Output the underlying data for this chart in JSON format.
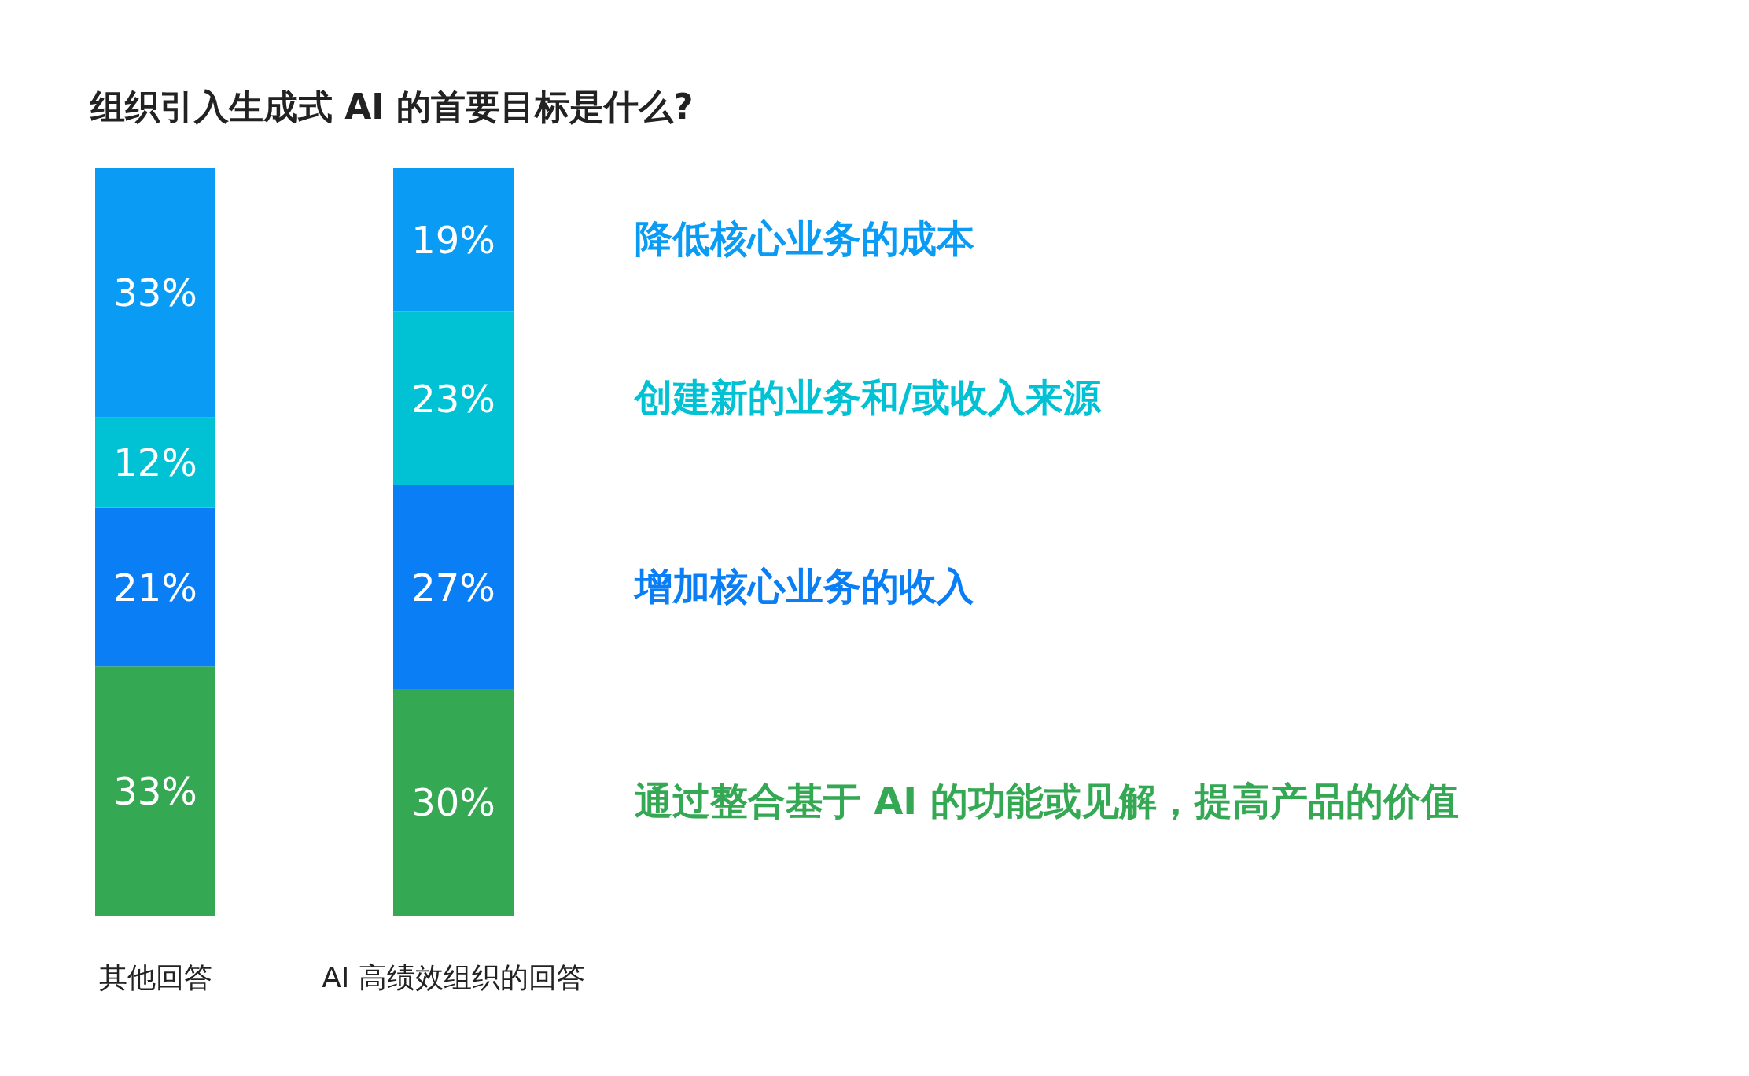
{
  "chart_data": {
    "type": "bar",
    "title": "组织引入生成式 AI 的首要目标是什么?",
    "categories": [
      "其他回答",
      "AI 高绩效组织的回答"
    ],
    "stacked": true,
    "series": [
      {
        "name": "通过整合基于 AI 的功能或见解，提高产品的价值",
        "color": "#34a853",
        "values": [
          33,
          30
        ],
        "value_labels": [
          "33%",
          "30%"
        ]
      },
      {
        "name": "增加核心业务的收入",
        "color": "#0a7ef5",
        "values": [
          21,
          27
        ],
        "value_labels": [
          "21%",
          "27%"
        ]
      },
      {
        "name": "创建新的业务和/或收入来源",
        "color": "#00c2d4",
        "values": [
          12,
          23
        ],
        "value_labels": [
          "12%",
          "23%"
        ]
      },
      {
        "name": "降低核心业务的成本",
        "color": "#0a9cf5",
        "values": [
          33,
          19
        ],
        "value_labels": [
          "33%",
          "19%"
        ]
      }
    ]
  }
}
